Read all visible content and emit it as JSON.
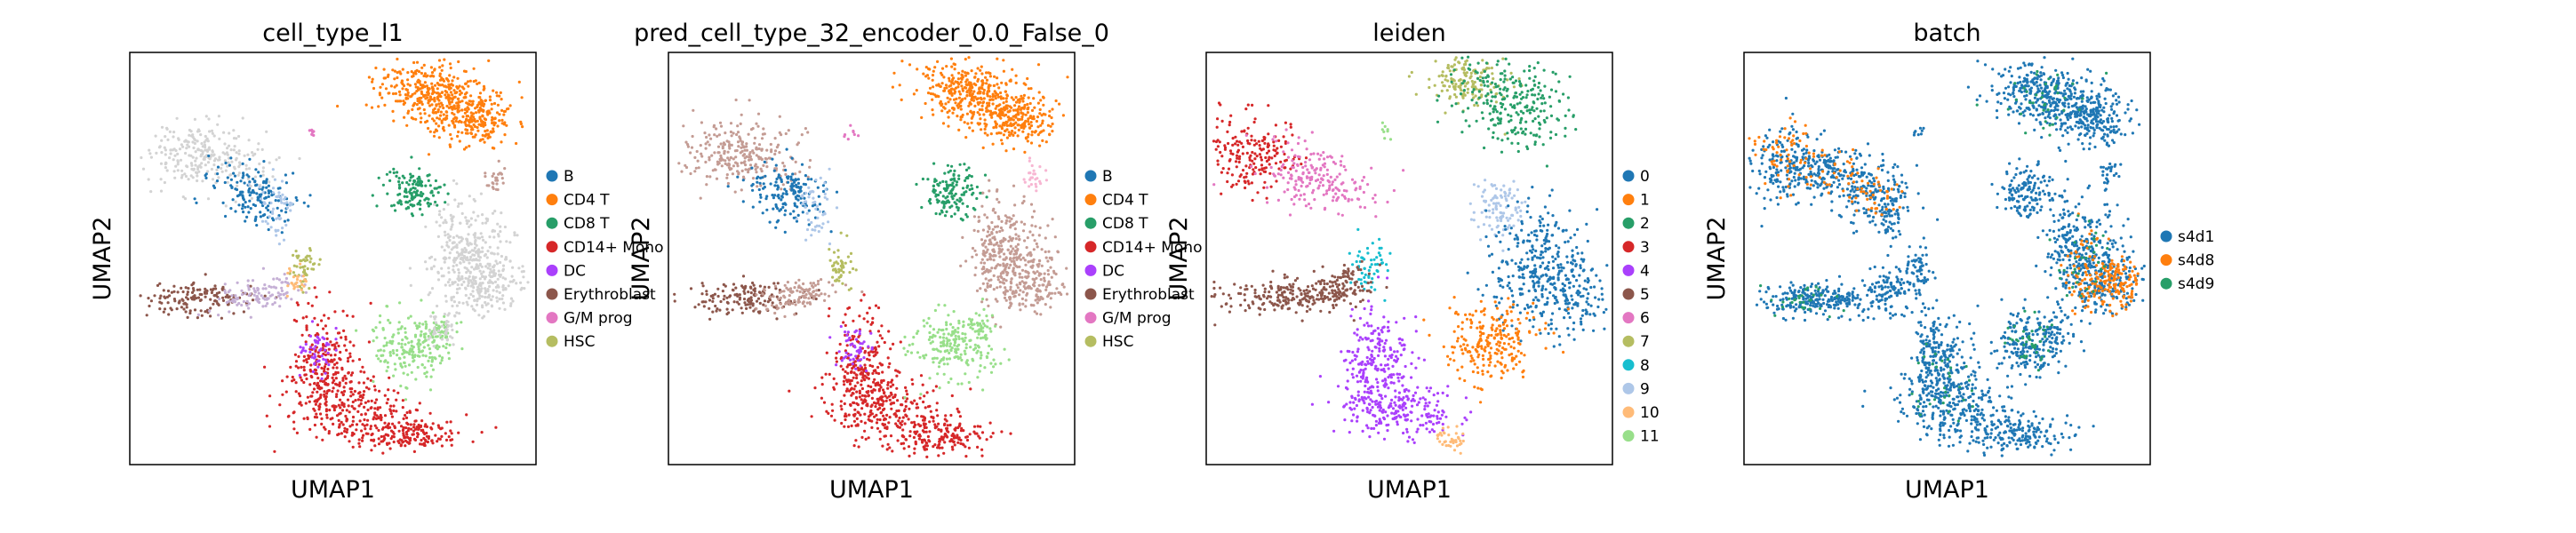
{
  "chart_data": [
    {
      "type": "scatter",
      "title": "cell_type_l1",
      "xlabel": "UMAP1",
      "ylabel": "UMAP2",
      "grid": false,
      "legend_position": "right",
      "legend": [
        {
          "name": "B",
          "color": "#1f77b4"
        },
        {
          "name": "CD4 T",
          "color": "#ff7f0e"
        },
        {
          "name": "CD8 T",
          "color": "#279e68"
        },
        {
          "name": "CD14+ Mono",
          "color": "#d62728"
        },
        {
          "name": "DC",
          "color": "#aa40fc"
        },
        {
          "name": "Erythroblast",
          "color": "#8c564b"
        },
        {
          "name": "G/M prog",
          "color": "#e377c2"
        },
        {
          "name": "HSC",
          "color": "#b5bd61"
        }
      ]
    },
    {
      "type": "scatter",
      "title": "pred_cell_type_32_encoder_0.0_False_0",
      "xlabel": "UMAP1",
      "ylabel": "UMAP2",
      "grid": false,
      "legend_position": "right",
      "legend": [
        {
          "name": "B",
          "color": "#1f77b4"
        },
        {
          "name": "CD4 T",
          "color": "#ff7f0e"
        },
        {
          "name": "CD8 T",
          "color": "#279e68"
        },
        {
          "name": "CD14+ Mono",
          "color": "#d62728"
        },
        {
          "name": "DC",
          "color": "#aa40fc"
        },
        {
          "name": "Erythroblast",
          "color": "#8c564b"
        },
        {
          "name": "G/M prog",
          "color": "#e377c2"
        },
        {
          "name": "HSC",
          "color": "#b5bd61"
        }
      ]
    },
    {
      "type": "scatter",
      "title": "leiden",
      "xlabel": "UMAP1",
      "ylabel": "UMAP2",
      "grid": false,
      "legend_position": "right",
      "legend": [
        {
          "name": "0",
          "color": "#1f77b4"
        },
        {
          "name": "1",
          "color": "#ff7f0e"
        },
        {
          "name": "2",
          "color": "#279e68"
        },
        {
          "name": "3",
          "color": "#d62728"
        },
        {
          "name": "4",
          "color": "#aa40fc"
        },
        {
          "name": "5",
          "color": "#8c564b"
        },
        {
          "name": "6",
          "color": "#e377c2"
        },
        {
          "name": "7",
          "color": "#b5bd61"
        },
        {
          "name": "8",
          "color": "#17becf"
        },
        {
          "name": "9",
          "color": "#aec7e8"
        },
        {
          "name": "10",
          "color": "#ffbb78"
        },
        {
          "name": "11",
          "color": "#98df8a"
        }
      ]
    },
    {
      "type": "scatter",
      "title": "batch",
      "xlabel": "UMAP1",
      "ylabel": "UMAP2",
      "grid": false,
      "legend_position": "right",
      "legend": [
        {
          "name": "s4d1",
          "color": "#1f77b4"
        },
        {
          "name": "s4d8",
          "color": "#ff7f0e"
        },
        {
          "name": "s4d9",
          "color": "#279e68"
        }
      ]
    }
  ],
  "palette": {
    "unlabeled_gray": "#d3d3d3",
    "light_pink_brown": "#c49c94",
    "light_pink": "#f7b6d2"
  }
}
